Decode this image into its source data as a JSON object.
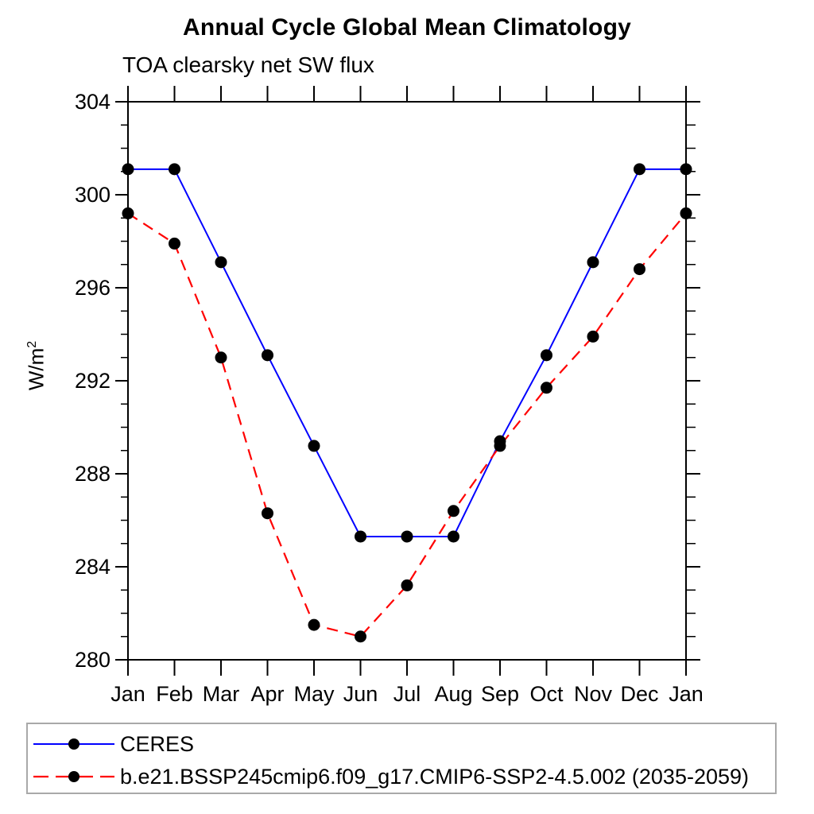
{
  "chart": {
    "title": "Annual Cycle Global Mean Climatology",
    "subtitle": "TOA clearsky net SW flux",
    "ylabel_base": "W/m",
    "ylabel_exp": "2"
  },
  "chart_data": {
    "type": "line",
    "title": "Annual Cycle Global Mean Climatology",
    "subtitle": "TOA clearsky net SW flux",
    "ylabel": "W/m2",
    "categories": [
      "Jan",
      "Feb",
      "Mar",
      "Apr",
      "May",
      "Jun",
      "Jul",
      "Aug",
      "Sep",
      "Oct",
      "Nov",
      "Dec",
      "Jan"
    ],
    "series": [
      {
        "name": "CERES",
        "color": "#0000ff",
        "line_style": "solid",
        "marker": "filled-circle",
        "marker_color": "#000000",
        "values": [
          301.1,
          301.1,
          297.1,
          293.1,
          289.2,
          285.3,
          285.3,
          285.3,
          289.4,
          293.1,
          297.1,
          301.1,
          301.1
        ]
      },
      {
        "name": "b.e21.BSSP245cmip6.f09_g17.CMIP6-SSP2-4.5.002 (2035-2059)",
        "color": "#ff0000",
        "line_style": "dashed",
        "marker": "filled-circle",
        "marker_color": "#000000",
        "values": [
          299.2,
          297.9,
          293.0,
          286.3,
          281.5,
          281.0,
          283.2,
          286.4,
          289.2,
          291.7,
          293.9,
          296.8,
          299.2
        ]
      }
    ],
    "ylim": [
      280,
      304
    ],
    "yticks": [
      280,
      284,
      288,
      292,
      296,
      300,
      304
    ],
    "y_minor_step": 1,
    "grid": false,
    "legend_position": "bottom-left",
    "axis_color": "#000000"
  }
}
